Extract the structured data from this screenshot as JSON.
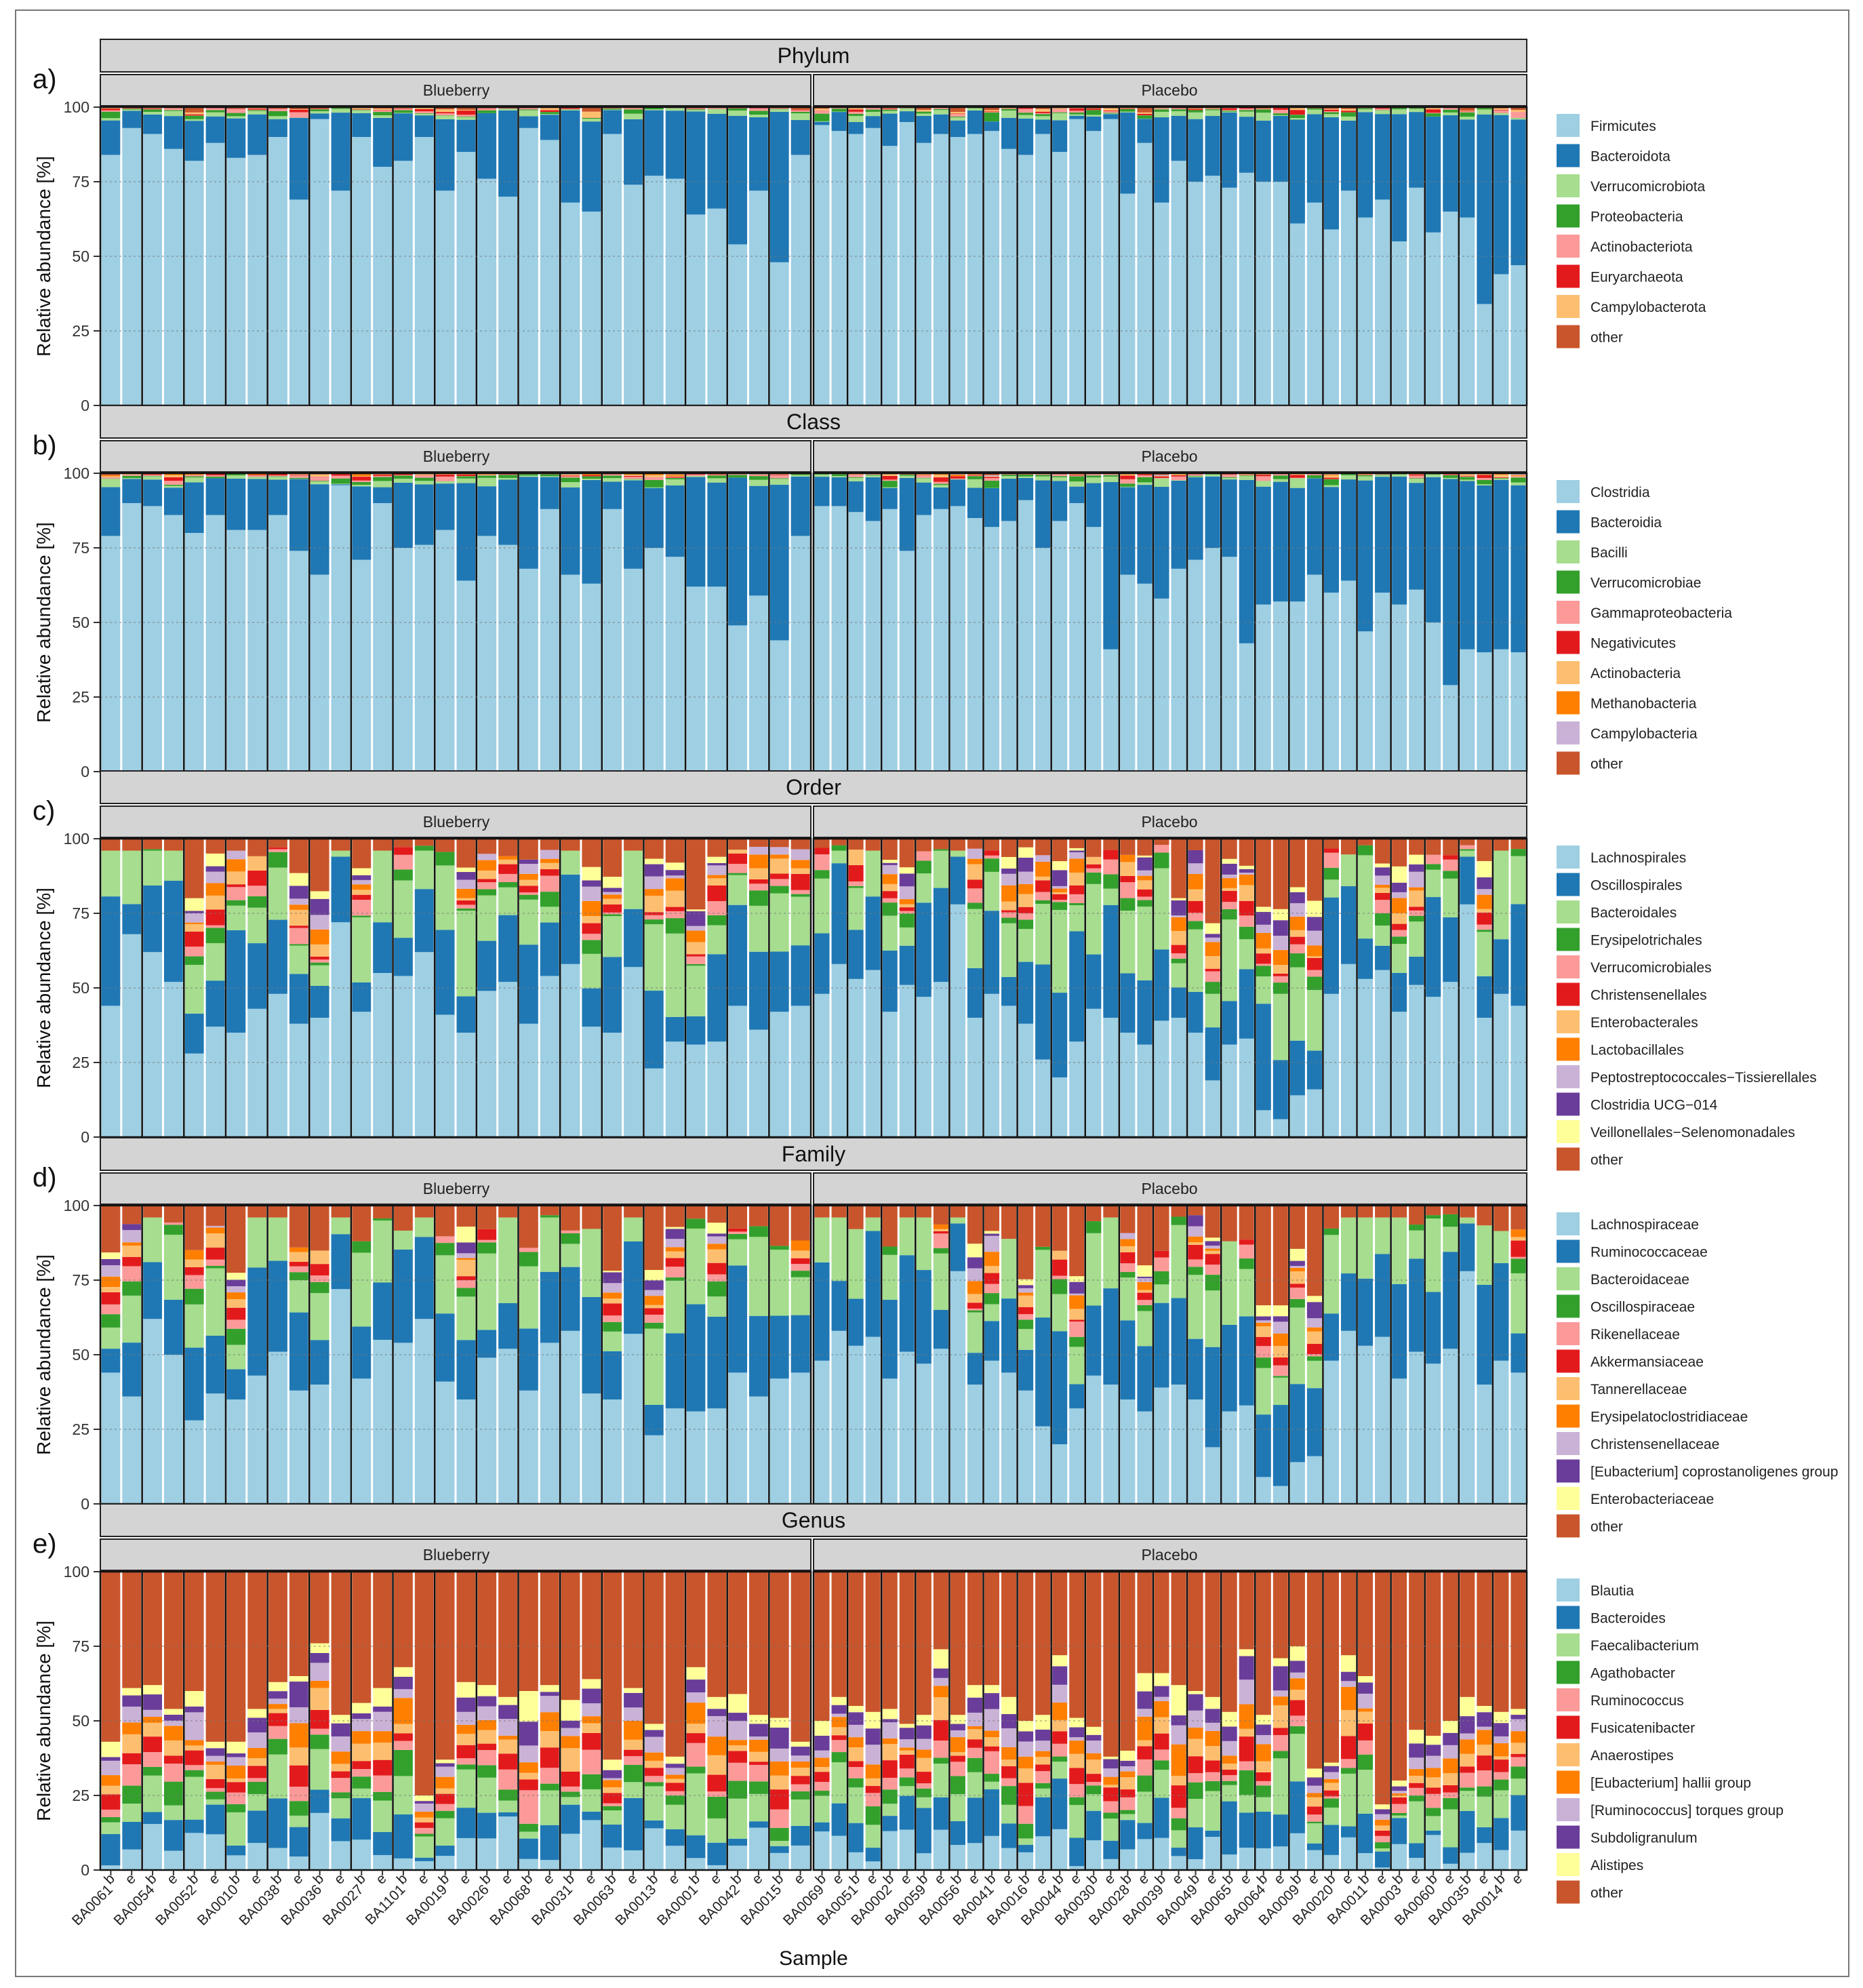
{
  "figure": {
    "x_axis_title": "Sample",
    "y_axis_title": "Relative abundance [%]",
    "y_ticks": [
      0,
      25,
      50,
      75,
      100
    ],
    "groups": [
      "Blueberry",
      "Placebo"
    ],
    "sample_labels": {
      "Blueberry": [
        "BA0061",
        "BA0054",
        "BA0052",
        "BA0010",
        "BA0038",
        "BA0036",
        "BA0027",
        "BA1101",
        "BA0019",
        "BA0026",
        "BA0068",
        "BA0031",
        "BA0063",
        "BA0013",
        "BA0001",
        "BA0042",
        "BA0015"
      ],
      "Placebo": [
        "BA0069",
        "BA0051",
        "BA0002",
        "BA0059",
        "BA0056",
        "BA0041",
        "BA0016",
        "BA0044",
        "BA0030",
        "BA0028",
        "BA0039",
        "BA0049",
        "BA0065",
        "BA0064",
        "BA0009",
        "BA0020",
        "BA0011",
        "BA0003",
        "BA0060",
        "BA0035",
        "BA0014"
      ]
    },
    "timepoint_labels": [
      "b",
      "e"
    ]
  },
  "chart_data": [
    {
      "type": "bar",
      "stacked": true,
      "panel_letter": "a)",
      "title": "Phylum",
      "ylim": [
        0,
        100
      ],
      "legend": [
        {
          "name": "Firmicutes",
          "color": "#9ecfe3"
        },
        {
          "name": "Bacteroidota",
          "color": "#1f78b4"
        },
        {
          "name": "Verrucomicrobiota",
          "color": "#a6dd8e"
        },
        {
          "name": "Proteobacteria",
          "color": "#33a02c"
        },
        {
          "name": "Actinobacteriota",
          "color": "#fb9a99"
        },
        {
          "name": "Euryarchaeota",
          "color": "#e31a1c"
        },
        {
          "name": "Campylobacterota",
          "color": "#fdbf6f"
        },
        {
          "name": "other",
          "color": "#c9552c"
        }
      ],
      "approx_dominant_first_taxon_pct": {
        "Blueberry": [
          84,
          93,
          91,
          86,
          82,
          88,
          83,
          84,
          90,
          69,
          96,
          72,
          90,
          80,
          82,
          90,
          72,
          85,
          76,
          70,
          93,
          89,
          68,
          65,
          91,
          74,
          77,
          76,
          64,
          66,
          54,
          72,
          48
        ],
        "Placebo": [
          94,
          92,
          91,
          93,
          87,
          95,
          88,
          91,
          90,
          91,
          92,
          86,
          84,
          91,
          85,
          96,
          92,
          96,
          71,
          88,
          68,
          82,
          75,
          77,
          73,
          78,
          75,
          75,
          61,
          68,
          59,
          72,
          63,
          69,
          55,
          73,
          58,
          65,
          63,
          34,
          44,
          47
        ]
      }
    },
    {
      "type": "bar",
      "stacked": true,
      "panel_letter": "b)",
      "title": "Class",
      "ylim": [
        0,
        100
      ],
      "legend": [
        {
          "name": "Clostridia",
          "color": "#9ecfe3"
        },
        {
          "name": "Bacteroidia",
          "color": "#1f78b4"
        },
        {
          "name": "Bacilli",
          "color": "#a6dd8e"
        },
        {
          "name": "Verrucomicrobiae",
          "color": "#33a02c"
        },
        {
          "name": "Gammaproteobacteria",
          "color": "#fb9a99"
        },
        {
          "name": "Negativicutes",
          "color": "#e31a1c"
        },
        {
          "name": "Actinobacteria",
          "color": "#fdbf6f"
        },
        {
          "name": "Methanobacteria",
          "color": "#ff7f00"
        },
        {
          "name": "Campylobacteria",
          "color": "#cab2d6"
        },
        {
          "name": "other",
          "color": "#c9552c"
        }
      ],
      "approx_dominant_first_taxon_pct": {
        "Blueberry": [
          79,
          90,
          89,
          86,
          80,
          86,
          81,
          81,
          86,
          74,
          66,
          96,
          71,
          90,
          75,
          76,
          81,
          64,
          79,
          76,
          68,
          88,
          66,
          63,
          88,
          68,
          75,
          72,
          62,
          62,
          49,
          59,
          44
        ],
        "Placebo": [
          89,
          89,
          87,
          84,
          88,
          74,
          86,
          88,
          89,
          85,
          82,
          84,
          91,
          75,
          84,
          90,
          82,
          41,
          66,
          63,
          58,
          68,
          71,
          75,
          72,
          43,
          56,
          57,
          57,
          66,
          60,
          64,
          47,
          60,
          56,
          61,
          50,
          29,
          41,
          40,
          41,
          40
        ]
      }
    },
    {
      "type": "bar",
      "stacked": true,
      "panel_letter": "c)",
      "title": "Order",
      "ylim": [
        0,
        100
      ],
      "legend": [
        {
          "name": "Lachnospirales",
          "color": "#9ecfe3"
        },
        {
          "name": "Oscillospirales",
          "color": "#1f78b4"
        },
        {
          "name": "Bacteroidales",
          "color": "#a6dd8e"
        },
        {
          "name": "Erysipelotrichales",
          "color": "#33a02c"
        },
        {
          "name": "Verrucomicrobiales",
          "color": "#fb9a99"
        },
        {
          "name": "Christensenellales",
          "color": "#e31a1c"
        },
        {
          "name": "Enterobacterales",
          "color": "#fdbf6f"
        },
        {
          "name": "Lactobacillales",
          "color": "#ff7f00"
        },
        {
          "name": "Peptostreptococcales−Tissierellales",
          "color": "#cab2d6"
        },
        {
          "name": "Clostridia UCG−014",
          "color": "#6a3d9a"
        },
        {
          "name": "Veillonellales−Selenomonadales",
          "color": "#ffff99"
        },
        {
          "name": "other",
          "color": "#c9552c"
        }
      ],
      "approx_dominant_first_taxon_pct": {
        "Blueberry": [
          44,
          68,
          62,
          52,
          28,
          37,
          35,
          43,
          48,
          38,
          40,
          72,
          42,
          55,
          54,
          62,
          41,
          35,
          49,
          52,
          38,
          54,
          58,
          37,
          35,
          57,
          23,
          32,
          31,
          32,
          44,
          36,
          42
        ],
        "Placebo": [
          48,
          58,
          53,
          56,
          42,
          51,
          47,
          52,
          78,
          40,
          48,
          44,
          38,
          26,
          20,
          32,
          43,
          40,
          35,
          31,
          39,
          40,
          35,
          19,
          31,
          33,
          9,
          6,
          14,
          16
        ]
      }
    },
    {
      "type": "bar",
      "stacked": true,
      "panel_letter": "d)",
      "title": "Family",
      "ylim": [
        0,
        100
      ],
      "legend": [
        {
          "name": "Lachnospiraceae",
          "color": "#9ecfe3"
        },
        {
          "name": "Ruminococcaceae",
          "color": "#1f78b4"
        },
        {
          "name": "Bacteroidaceae",
          "color": "#a6dd8e"
        },
        {
          "name": "Oscillospiraceae",
          "color": "#33a02c"
        },
        {
          "name": "Rikenellaceae",
          "color": "#fb9a99"
        },
        {
          "name": "Akkermansiaceae",
          "color": "#e31a1c"
        },
        {
          "name": "Tannerellaceae",
          "color": "#fdbf6f"
        },
        {
          "name": "Erysipelatoclostridiaceae",
          "color": "#ff7f00"
        },
        {
          "name": "Christensenellaceae",
          "color": "#cab2d6"
        },
        {
          "name": "[Eubacterium] coprostanoligenes group",
          "color": "#6a3d9a"
        },
        {
          "name": "Enterobacteriaceae",
          "color": "#ffff99"
        },
        {
          "name": "other",
          "color": "#c9552c"
        }
      ],
      "approx_dominant_first_taxon_pct": {
        "Blueberry": [
          44,
          36,
          62,
          50,
          28,
          37,
          35,
          43,
          51,
          38,
          40,
          72,
          42,
          55,
          54,
          62,
          41,
          35,
          49,
          52,
          38,
          54,
          58,
          37,
          35,
          57,
          23,
          32,
          31,
          32,
          44,
          36,
          42
        ],
        "Placebo": [
          48,
          58,
          53,
          56,
          42,
          51,
          47,
          52,
          78,
          40,
          48,
          44,
          38,
          26,
          20,
          32,
          43,
          40,
          35,
          31,
          39,
          40,
          35,
          19,
          31,
          33,
          9,
          6,
          14,
          16
        ]
      }
    },
    {
      "type": "bar",
      "stacked": true,
      "panel_letter": "e)",
      "title": "Genus",
      "ylim": [
        0,
        100
      ],
      "legend": [
        {
          "name": "Blautia",
          "color": "#9ecfe3"
        },
        {
          "name": "Bacteroides",
          "color": "#1f78b4"
        },
        {
          "name": "Faecalibacterium",
          "color": "#a6dd8e"
        },
        {
          "name": "Agathobacter",
          "color": "#33a02c"
        },
        {
          "name": "Ruminococcus",
          "color": "#fb9a99"
        },
        {
          "name": "Fusicatenibacter",
          "color": "#e31a1c"
        },
        {
          "name": "Anaerostipes",
          "color": "#fdbf6f"
        },
        {
          "name": "[Eubacterium] hallii group",
          "color": "#ff7f00"
        },
        {
          "name": "[Ruminococcus] torques group",
          "color": "#cab2d6"
        },
        {
          "name": "Subdoligranulum",
          "color": "#6a3d9a"
        },
        {
          "name": "Alistipes",
          "color": "#ffff99"
        },
        {
          "name": "other",
          "color": "#c9552c"
        }
      ],
      "approx_other_top_boundary_pct": {
        "Blueberry": [
          43,
          61,
          62,
          54,
          60,
          43,
          43,
          54,
          63,
          65,
          76,
          52,
          56,
          61,
          68,
          25,
          37,
          63,
          62,
          58,
          60,
          62,
          57,
          64,
          37,
          61,
          49,
          38,
          68,
          58,
          59,
          52,
          51
        ],
        "Placebo": [
          50,
          58,
          55,
          53,
          54,
          49,
          52,
          74,
          52,
          62,
          62,
          58,
          50,
          52,
          72,
          51,
          48,
          38,
          40,
          66,
          66,
          62,
          60,
          58,
          53,
          74,
          52,
          71,
          75,
          34,
          36,
          72,
          65,
          22,
          30,
          47,
          45
        ]
      }
    }
  ]
}
